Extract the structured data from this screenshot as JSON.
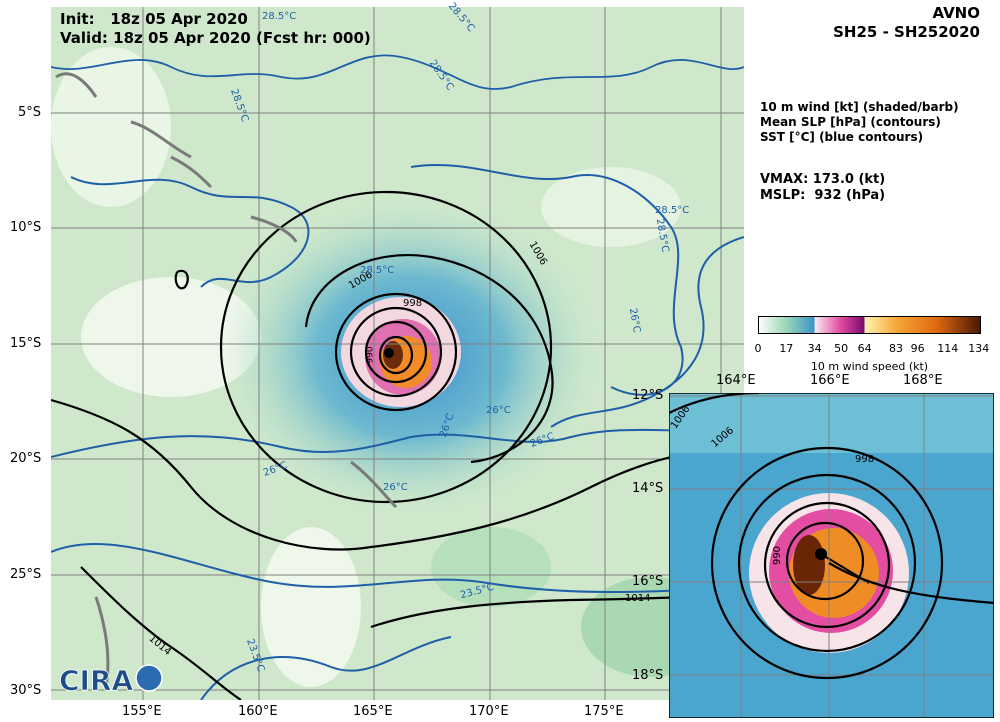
{
  "header": {
    "init": "Init:   18z 05 Apr 2020",
    "valid": "Valid: 18z 05 Apr 2020 (Fcst hr: 000)",
    "model": "AVNO",
    "storm": "SH25 - SH252020"
  },
  "legend": {
    "line1": "10 m wind [kt] (shaded/barb)",
    "line2": "Mean SLP [hPa] (contours)",
    "line3": "SST [°C] (blue contours)"
  },
  "stats": {
    "vmax": "VMAX: 173.0 (kt)",
    "mslp": "MSLP:  932 (hPa)"
  },
  "colorbar": {
    "title": "10 m wind speed (kt)",
    "ticks": [
      "0",
      "17",
      "34",
      "50",
      "64",
      "83",
      "96",
      "114",
      "134"
    ]
  },
  "main_map": {
    "lat_labels": [
      "5°S",
      "10°S",
      "15°S",
      "20°S",
      "25°S",
      "30°S"
    ],
    "lon_labels": [
      "155°E",
      "160°E",
      "165°E",
      "170°E",
      "175°E"
    ],
    "slp_labels": [
      "1006",
      "1006",
      "998",
      "990",
      "1014",
      "1014"
    ],
    "sst_labels": [
      "28.5°C",
      "28.5°C",
      "28.5°C",
      "28.5°C",
      "28.5°C",
      "28.5°C",
      "28.5°C",
      "26°C",
      "26°C",
      "26°C",
      "26°C",
      "26°C",
      "26°C",
      "23.5°C",
      "23.5°C"
    ]
  },
  "inset_map": {
    "lat_labels": [
      "12°S",
      "14°S",
      "16°S",
      "18°S"
    ],
    "lon_labels": [
      "164°E",
      "166°E",
      "168°E"
    ],
    "slp_labels": [
      "1006",
      "1006",
      "998",
      "990"
    ]
  },
  "logo": {
    "text": "CIRA"
  },
  "colors": {
    "slp": "#000000",
    "sst": "#1f5fa8",
    "wind_low": "#e8f4e4",
    "wind_mid": "#3f9fd0",
    "wind_high": "#8a3a0c"
  }
}
